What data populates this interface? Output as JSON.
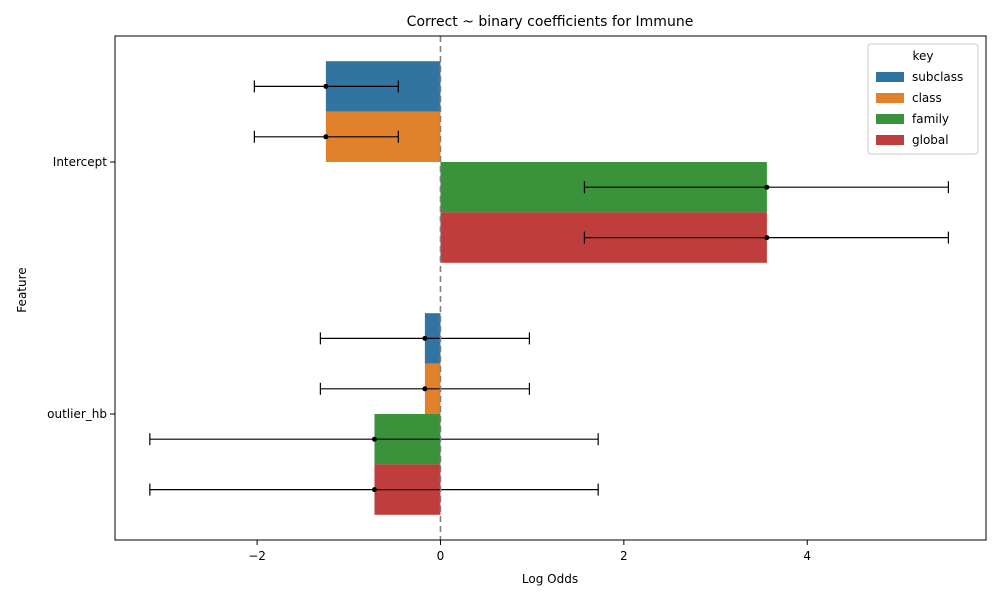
{
  "chart_data": {
    "type": "bar",
    "orientation": "horizontal",
    "title": "Correct ~ binary coefficients for Immune",
    "xlabel": "Log Odds",
    "ylabel": "Feature",
    "categories": [
      "Intercept",
      "outlier_hb"
    ],
    "xlim": [
      -3.55,
      5.95
    ],
    "xticks": [
      -2,
      0,
      2,
      4
    ],
    "xtick_labels": [
      "−2",
      "0",
      "2",
      "4"
    ],
    "legend": {
      "title": "key",
      "placement": "top-right"
    },
    "reference_line": {
      "x": 0,
      "style": "dashed",
      "color": "#808080"
    },
    "series": [
      {
        "name": "subclass",
        "color": "#3274a1",
        "values": [
          -1.25,
          -0.17
        ],
        "ci_low": [
          -2.03,
          -1.31
        ],
        "ci_high": [
          -0.46,
          0.97
        ]
      },
      {
        "name": "class",
        "color": "#e1812c",
        "values": [
          -1.25,
          -0.17
        ],
        "ci_low": [
          -2.03,
          -1.31
        ],
        "ci_high": [
          -0.46,
          0.97
        ]
      },
      {
        "name": "family",
        "color": "#3a923a",
        "values": [
          3.56,
          -0.72
        ],
        "ci_low": [
          1.57,
          -3.17
        ],
        "ci_high": [
          5.54,
          1.72
        ]
      },
      {
        "name": "global",
        "color": "#c03d3e",
        "values": [
          3.56,
          -0.72
        ],
        "ci_low": [
          1.57,
          -3.17
        ],
        "ci_high": [
          5.54,
          1.72
        ]
      }
    ]
  }
}
